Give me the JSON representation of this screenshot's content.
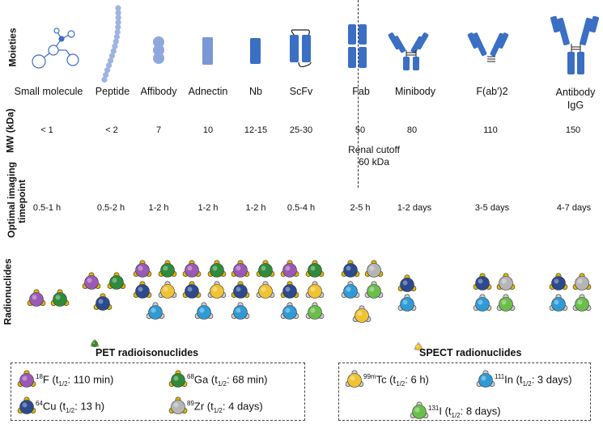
{
  "row_labels": {
    "moieties": "Moieties",
    "mw": "MW (kDa)",
    "timepoint_line1": "Optimal imaging",
    "timepoint_line2": "timepoint",
    "radionuclides": "Radionuclides"
  },
  "moieties": [
    {
      "name": "Small molecule",
      "mw": "< 1",
      "timepoint": "0.5-1 h"
    },
    {
      "name": "Peptide",
      "mw": "< 2",
      "timepoint": "0.5-2 h"
    },
    {
      "name": "Affibody",
      "mw": "7",
      "timepoint": "1-2 h"
    },
    {
      "name": "Adnectin",
      "mw": "10",
      "timepoint": "1-2 h"
    },
    {
      "name": "Nb",
      "mw": "12-15",
      "timepoint": "1-2 h"
    },
    {
      "name": "ScFv",
      "mw": "25-30",
      "timepoint": "0.5-4 h"
    },
    {
      "name": "Fab",
      "mw": "50",
      "timepoint": "2-5 h"
    },
    {
      "name": "Minibody",
      "mw": "80",
      "timepoint": "1-2 days"
    },
    {
      "name": "F(ab')2",
      "mw": "110",
      "timepoint": "3-5 days"
    },
    {
      "name_line1": "Antibody",
      "name_line2": "IgG",
      "mw": "150",
      "timepoint": "4-7 days"
    }
  ],
  "renal_cutoff": {
    "line1": "Renal cutoff",
    "line2": "60 kDa"
  },
  "legend": {
    "pet_title": "PET radioisonuclides",
    "spect_title": "SPECT radionuclides",
    "pet": [
      {
        "isotope": "F",
        "mass": "18",
        "color": "#9b59b6",
        "half_life": " (t",
        "sub": "1/2",
        "rest": ": 110 min)"
      },
      {
        "isotope": "Ga",
        "mass": "68",
        "color": "#2e8b3a",
        "half_life": " (t",
        "sub": "1/2",
        "rest": ": 68 min)"
      },
      {
        "isotope": "Cu",
        "mass": "64",
        "color": "#2c4a8f",
        "half_life": " (t",
        "sub": "1/2",
        "rest": ": 13 h)"
      },
      {
        "isotope": "Zr",
        "mass": "89",
        "color": "#b5b5b5",
        "half_life": " (t",
        "sub": "1/2",
        "rest": ": 4 days)"
      }
    ],
    "spect": [
      {
        "isotope": "Tc",
        "mass": "99m",
        "color": "#f1c232",
        "half_life": " (t",
        "sub": "1/2",
        "rest": ": 6 h)"
      },
      {
        "isotope": "In",
        "mass": "111",
        "color": "#2f9bd6",
        "half_life": " (t",
        "sub": "1/2",
        "rest": ": 3 days)"
      },
      {
        "isotope": "I",
        "mass": "131",
        "color": "#6abf4b",
        "half_life": " (t",
        "sub": "1/2",
        "rest": ": 8 days)"
      }
    ]
  },
  "radionuclide_icons": {
    "small_molecule": [
      "F",
      "Ga"
    ],
    "peptide": [
      "F",
      "Ga",
      "Cu"
    ],
    "affibody": [
      "F",
      "Ga",
      "Cu",
      "Tc",
      "In"
    ],
    "adnectin": [
      "F",
      "Ga",
      "Cu",
      "Tc",
      "In"
    ],
    "nb": [
      "F",
      "Ga",
      "Cu",
      "Tc",
      "In"
    ],
    "scfv": [
      "F",
      "Ga",
      "Cu",
      "Tc",
      "In",
      "I"
    ],
    "fab": [
      "Cu",
      "Zr",
      "In",
      "I",
      "Tc"
    ],
    "minibody": [
      "Cu",
      "In"
    ],
    "fab2": [
      "Cu",
      "Zr",
      "In",
      "I"
    ],
    "igg": [
      "Cu",
      "Zr",
      "In",
      "I"
    ]
  },
  "colors": {
    "protein": "#3a6fc4",
    "protein_light": "#6f8fd0",
    "divider": "#333333"
  }
}
